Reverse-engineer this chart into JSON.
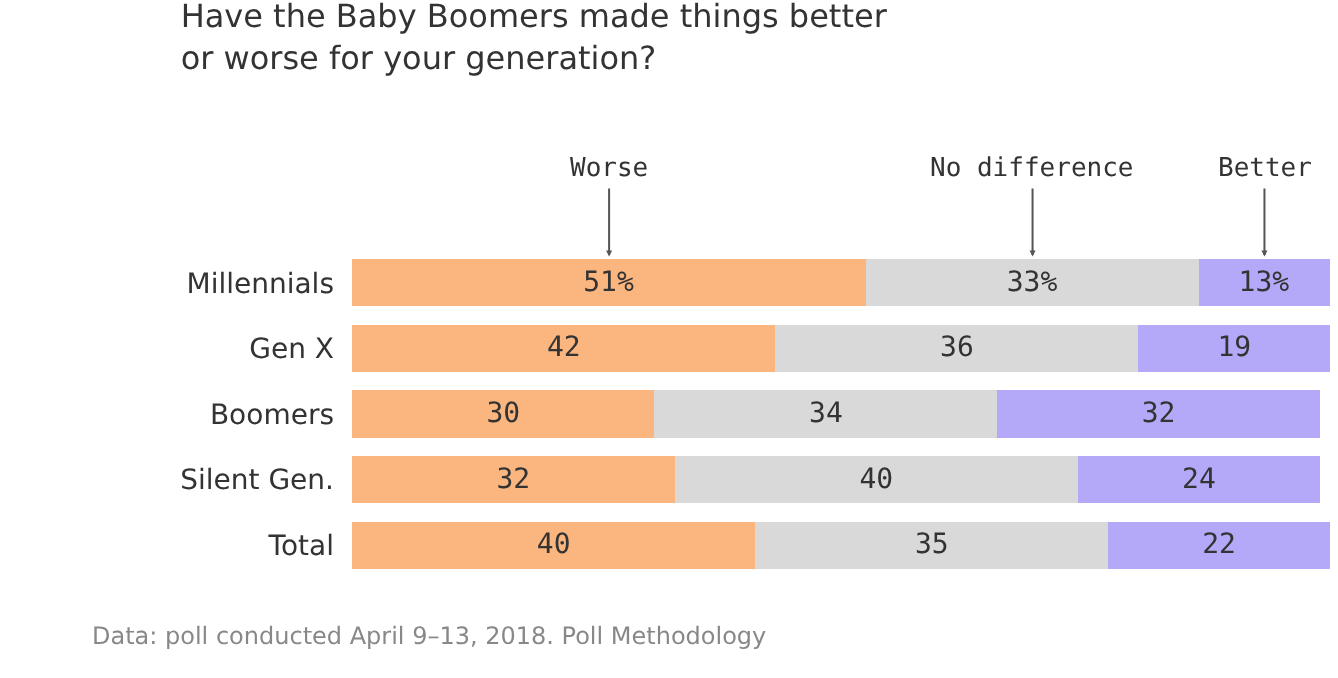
{
  "chart_data": {
    "type": "bar",
    "orientation": "horizontal",
    "stacked": true,
    "title": "Have the Baby Boomers made things better or worse for your generation?",
    "categories": [
      "Millennials",
      "Gen X",
      "Boomers",
      "Silent Gen.",
      "Total"
    ],
    "series": [
      {
        "name": "Worse",
        "color": "#fbb57f",
        "values": [
          51,
          42,
          30,
          32,
          40
        ],
        "value_labels": [
          "51%",
          "42",
          "30",
          "32",
          "40"
        ]
      },
      {
        "name": "No difference",
        "color": "#d9d9d9",
        "values": [
          33,
          36,
          34,
          40,
          35
        ],
        "value_labels": [
          "33%",
          "36",
          "34",
          "40",
          "35"
        ]
      },
      {
        "name": "Better",
        "color": "#b4a9f8",
        "values": [
          13,
          19,
          32,
          24,
          22
        ],
        "value_labels": [
          "13%",
          "19",
          "32",
          "24",
          "22"
        ]
      }
    ],
    "xlim": [
      0,
      97
    ],
    "tick_labels": "y",
    "legend": false,
    "annotations": [
      "Data: poll conducted April 9–13, 2018. Poll Methodology"
    ]
  }
}
